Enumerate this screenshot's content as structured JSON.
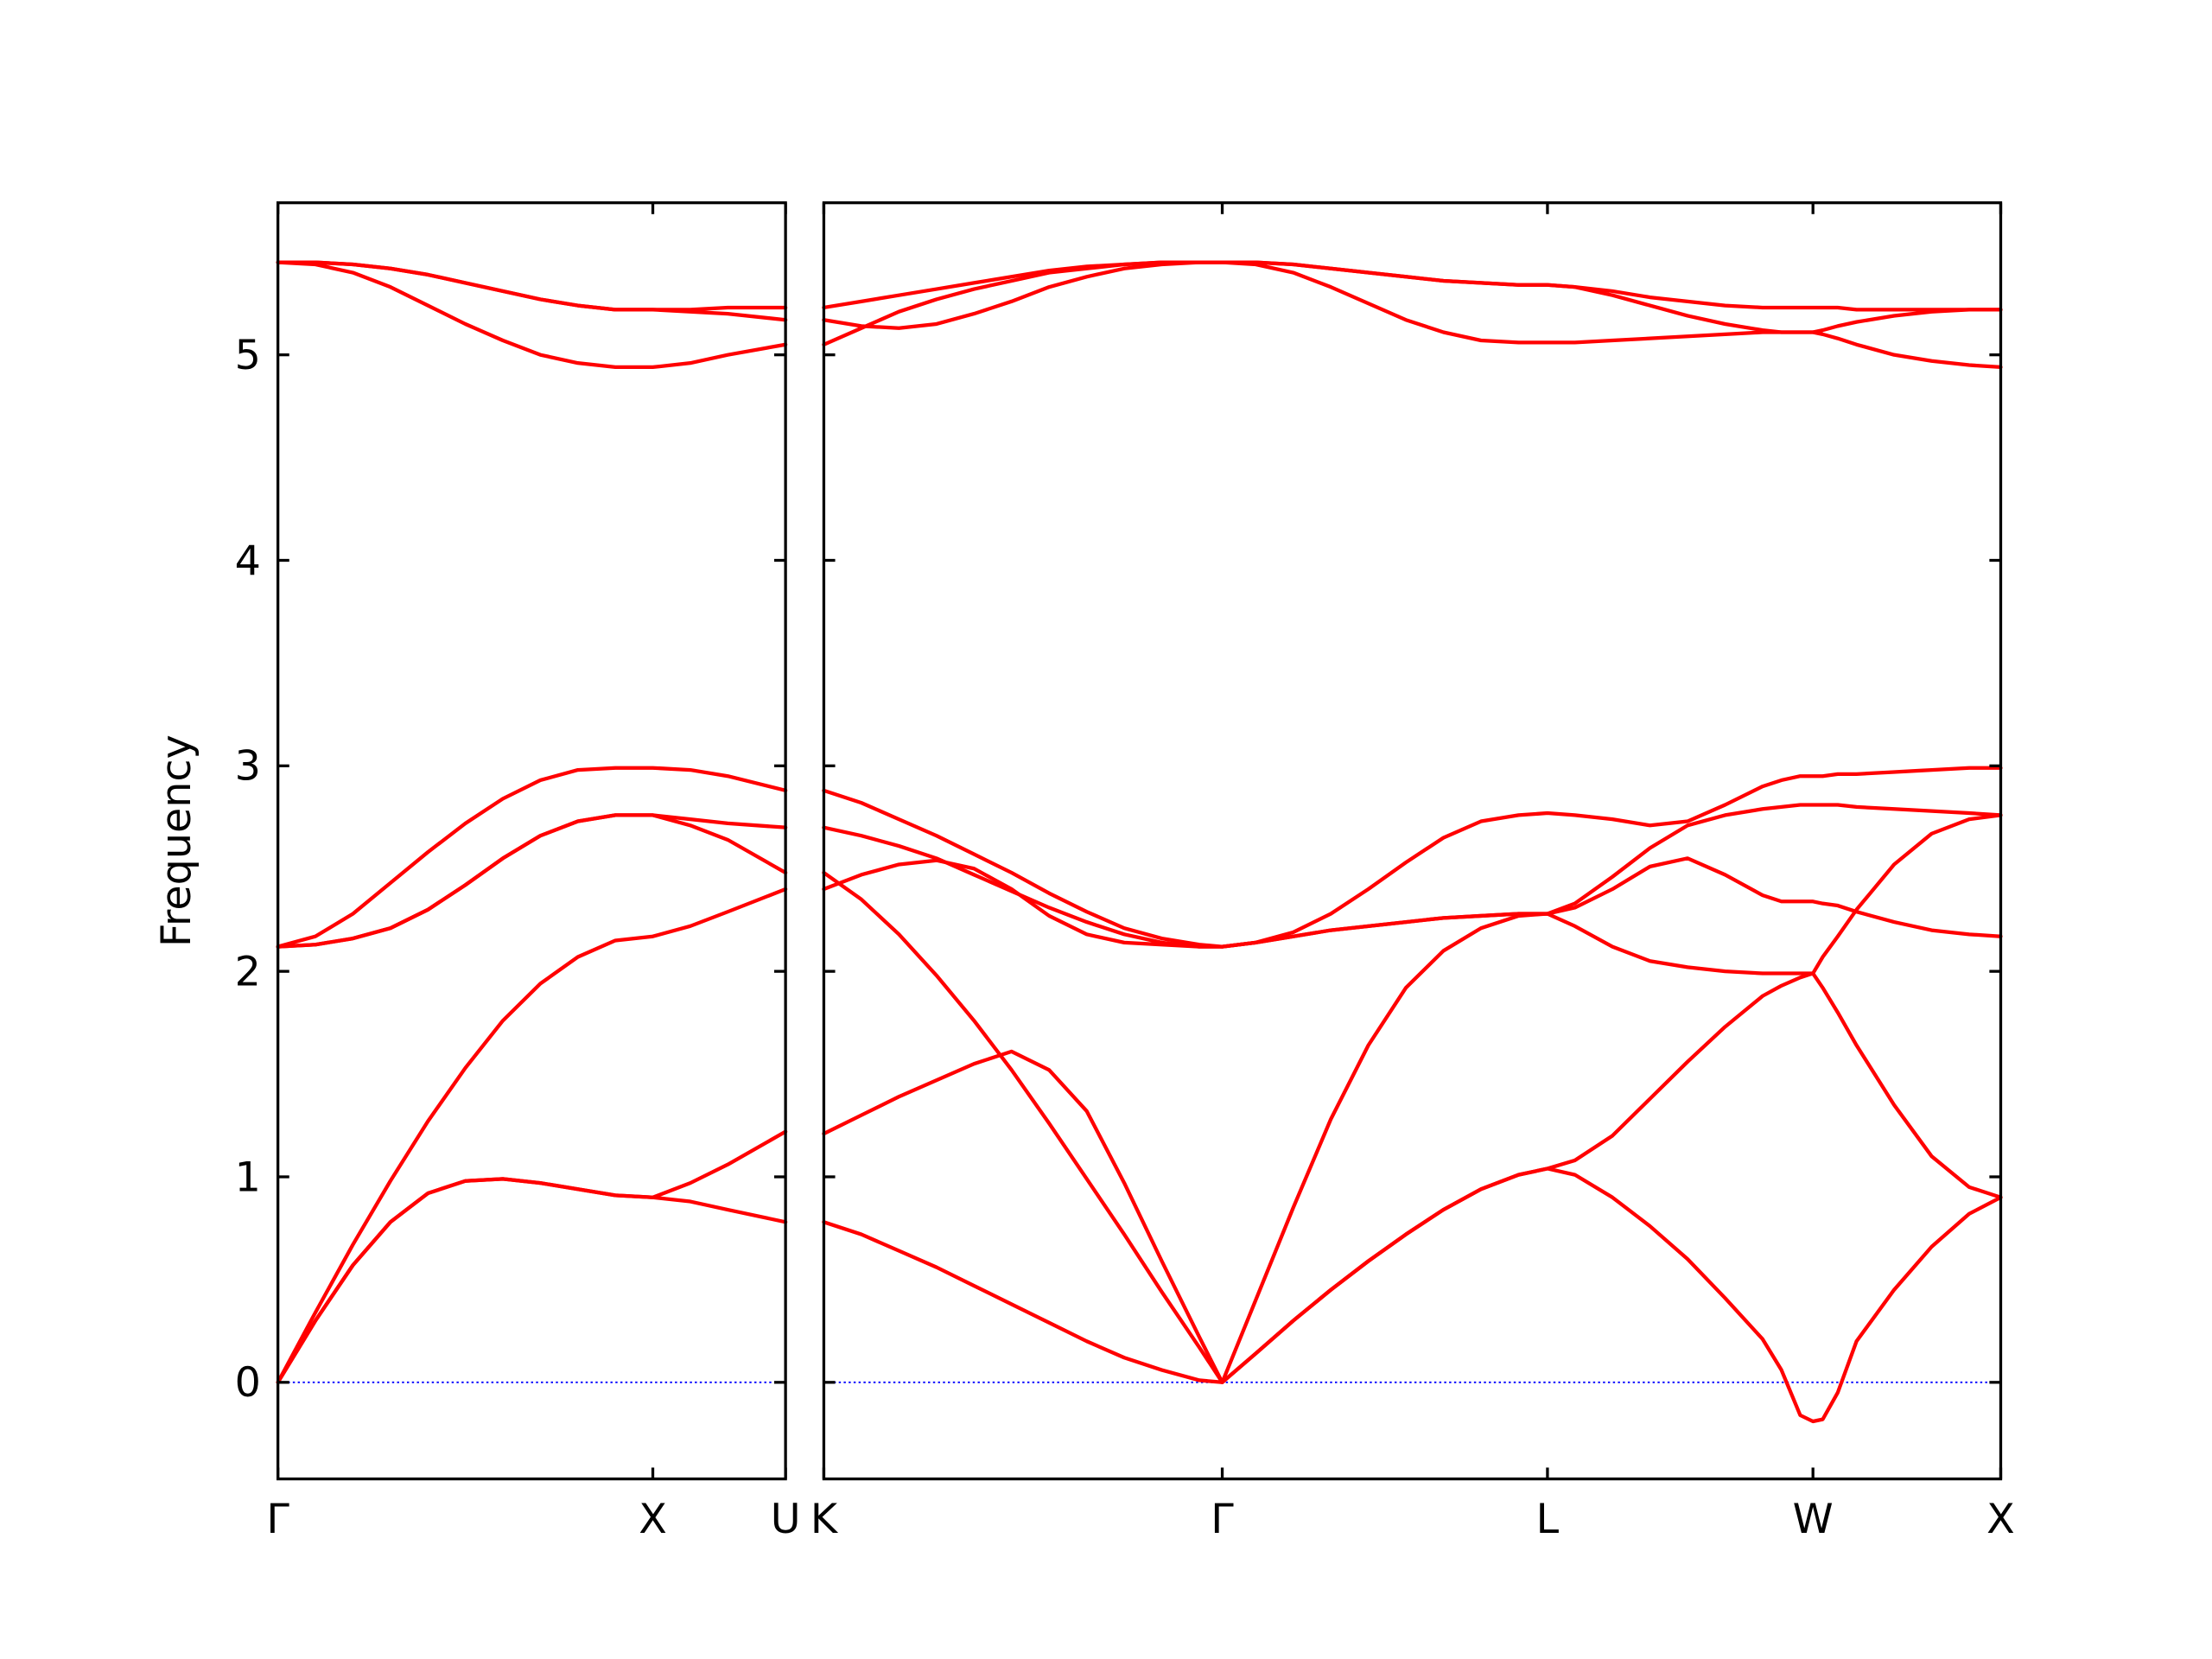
{
  "chart_data": [
    {
      "type": "line",
      "ylabel": "Frequency",
      "x": [
        0,
        0.1,
        0.2,
        0.3,
        0.4,
        0.5,
        0.6,
        0.7,
        0.8,
        0.9,
        1.0,
        1.1,
        1.2,
        1.354
      ],
      "xlim": [
        0,
        1.354
      ],
      "xticks": [
        {
          "value": 0,
          "label": "Γ"
        },
        {
          "value": 1,
          "label": "X"
        },
        {
          "value": 1.354,
          "label": "U"
        }
      ],
      "ylim": [
        -0.47,
        5.74
      ],
      "yticks": [
        0,
        1,
        2,
        3,
        4,
        5
      ],
      "ytick_labels": true,
      "hline": {
        "value": 0,
        "color": "#0000ff",
        "linestyle": "dotted"
      },
      "series": [
        {
          "color": "#ff0000",
          "values": [
            0,
            0.3,
            0.57,
            0.78,
            0.92,
            0.98,
            0.99,
            0.97,
            0.94,
            0.91,
            0.9,
            0.88,
            0.84,
            0.78
          ]
        },
        {
          "color": "#ff0000",
          "values": [
            0,
            0.3,
            0.57,
            0.78,
            0.92,
            0.98,
            0.99,
            0.97,
            0.94,
            0.91,
            0.9,
            0.97,
            1.06,
            1.22
          ]
        },
        {
          "color": "#ff0000",
          "values": [
            0,
            0.34,
            0.67,
            0.98,
            1.27,
            1.53,
            1.76,
            1.94,
            2.07,
            2.15,
            2.17,
            2.22,
            2.29,
            2.4
          ]
        },
        {
          "color": "#ff0000",
          "values": [
            2.12,
            2.13,
            2.16,
            2.21,
            2.3,
            2.42,
            2.55,
            2.66,
            2.73,
            2.76,
            2.76,
            2.74,
            2.72,
            2.7
          ]
        },
        {
          "color": "#ff0000",
          "values": [
            2.12,
            2.13,
            2.16,
            2.21,
            2.3,
            2.42,
            2.55,
            2.66,
            2.73,
            2.76,
            2.76,
            2.71,
            2.64,
            2.48
          ]
        },
        {
          "color": "#ff0000",
          "values": [
            2.12,
            2.17,
            2.28,
            2.43,
            2.58,
            2.72,
            2.84,
            2.93,
            2.98,
            2.99,
            2.99,
            2.98,
            2.95,
            2.88
          ]
        },
        {
          "color": "#ff0000",
          "values": [
            5.45,
            5.44,
            5.4,
            5.33,
            5.24,
            5.15,
            5.07,
            5.0,
            4.96,
            4.94,
            4.94,
            4.96,
            5.0,
            5.05
          ]
        },
        {
          "color": "#ff0000",
          "values": [
            5.45,
            5.45,
            5.44,
            5.42,
            5.39,
            5.35,
            5.31,
            5.27,
            5.24,
            5.22,
            5.22,
            5.21,
            5.2,
            5.17
          ]
        },
        {
          "color": "#ff0000",
          "values": [
            5.45,
            5.45,
            5.44,
            5.42,
            5.39,
            5.35,
            5.31,
            5.27,
            5.24,
            5.22,
            5.22,
            5.22,
            5.23,
            5.23
          ]
        }
      ]
    },
    {
      "type": "line",
      "x": [
        0,
        0.1,
        0.2,
        0.3,
        0.4,
        0.5,
        0.6,
        0.7,
        0.8,
        0.9,
        1.0,
        1.061,
        1.15,
        1.25,
        1.35,
        1.45,
        1.55,
        1.65,
        1.75,
        1.85,
        1.927,
        2.0,
        2.1,
        2.2,
        2.3,
        2.4,
        2.5,
        2.55,
        2.6,
        2.634,
        2.66,
        2.7,
        2.75,
        2.85,
        2.95,
        3.05,
        3.134
      ],
      "xlim": [
        0,
        3.134
      ],
      "xticks": [
        {
          "value": 0,
          "label": "K"
        },
        {
          "value": 1.061,
          "label": "Γ"
        },
        {
          "value": 1.927,
          "label": "L"
        },
        {
          "value": 2.634,
          "label": "W"
        },
        {
          "value": 3.134,
          "label": "X"
        }
      ],
      "ylim": [
        -0.47,
        5.74
      ],
      "yticks": [
        0,
        1,
        2,
        3,
        4,
        5
      ],
      "ytick_labels": false,
      "hline": {
        "value": 0,
        "color": "#0000ff",
        "linestyle": "dotted"
      },
      "series": [
        {
          "color": "#ff0000",
          "values": [
            0.78,
            0.72,
            0.64,
            0.56,
            0.47,
            0.38,
            0.29,
            0.2,
            0.12,
            0.06,
            0.01,
            0,
            0.14,
            0.3,
            0.45,
            0.59,
            0.72,
            0.84,
            0.94,
            1.01,
            1.04,
            1.01,
            0.9,
            0.76,
            0.6,
            0.41,
            0.21,
            0.06,
            -0.16,
            -0.19,
            -0.18,
            -0.05,
            0.2,
            0.45,
            0.66,
            0.82,
            0.9
          ]
        },
        {
          "color": "#ff0000",
          "values": [
            1.21,
            1.3,
            1.39,
            1.47,
            1.55,
            1.61,
            1.52,
            1.32,
            0.97,
            0.59,
            0.22,
            0,
            0.14,
            0.3,
            0.45,
            0.59,
            0.72,
            0.84,
            0.94,
            1.01,
            1.04,
            1.08,
            1.2,
            1.38,
            1.56,
            1.73,
            1.88,
            1.93,
            1.97,
            1.99,
            1.92,
            1.8,
            1.64,
            1.35,
            1.1,
            0.95,
            0.9
          ]
        },
        {
          "color": "#ff0000",
          "values": [
            2.48,
            2.35,
            2.18,
            1.98,
            1.76,
            1.52,
            1.26,
            0.99,
            0.72,
            0.44,
            0.17,
            0,
            0.4,
            0.85,
            1.28,
            1.64,
            1.92,
            2.1,
            2.21,
            2.27,
            2.28,
            2.22,
            2.12,
            2.05,
            2.02,
            2.0,
            1.99,
            1.99,
            1.99,
            1.99,
            2.07,
            2.17,
            2.3,
            2.52,
            2.67,
            2.74,
            2.76
          ]
        },
        {
          "color": "#ff0000",
          "values": [
            2.4,
            2.47,
            2.52,
            2.54,
            2.5,
            2.4,
            2.27,
            2.18,
            2.14,
            2.13,
            2.12,
            2.12,
            2.14,
            2.17,
            2.2,
            2.22,
            2.24,
            2.26,
            2.27,
            2.28,
            2.28,
            2.31,
            2.4,
            2.51,
            2.55,
            2.47,
            2.37,
            2.34,
            2.34,
            2.34,
            2.33,
            2.32,
            2.29,
            2.24,
            2.2,
            2.18,
            2.17
          ]
        },
        {
          "color": "#ff0000",
          "values": [
            2.7,
            2.66,
            2.61,
            2.55,
            2.47,
            2.39,
            2.31,
            2.24,
            2.18,
            2.14,
            2.12,
            2.12,
            2.14,
            2.17,
            2.2,
            2.22,
            2.24,
            2.26,
            2.27,
            2.28,
            2.28,
            2.33,
            2.46,
            2.6,
            2.71,
            2.76,
            2.79,
            2.8,
            2.81,
            2.81,
            2.81,
            2.81,
            2.8,
            2.79,
            2.78,
            2.77,
            2.76
          ]
        },
        {
          "color": "#ff0000",
          "values": [
            2.88,
            2.82,
            2.74,
            2.66,
            2.57,
            2.48,
            2.38,
            2.29,
            2.21,
            2.16,
            2.13,
            2.12,
            2.14,
            2.19,
            2.28,
            2.4,
            2.53,
            2.65,
            2.73,
            2.76,
            2.77,
            2.76,
            2.74,
            2.71,
            2.73,
            2.81,
            2.9,
            2.93,
            2.95,
            2.95,
            2.95,
            2.96,
            2.96,
            2.97,
            2.98,
            2.99,
            2.99
          ]
        },
        {
          "color": "#ff0000",
          "values": [
            5.17,
            5.14,
            5.13,
            5.15,
            5.2,
            5.26,
            5.33,
            5.38,
            5.42,
            5.44,
            5.45,
            5.45,
            5.44,
            5.4,
            5.33,
            5.25,
            5.17,
            5.11,
            5.07,
            5.06,
            5.06,
            5.06,
            5.07,
            5.08,
            5.09,
            5.1,
            5.11,
            5.11,
            5.11,
            5.11,
            5.12,
            5.14,
            5.16,
            5.19,
            5.21,
            5.22,
            5.22
          ]
        },
        {
          "color": "#ff0000",
          "values": [
            5.05,
            5.13,
            5.21,
            5.27,
            5.32,
            5.36,
            5.4,
            5.42,
            5.44,
            5.45,
            5.45,
            5.45,
            5.45,
            5.44,
            5.42,
            5.4,
            5.38,
            5.36,
            5.35,
            5.34,
            5.34,
            5.33,
            5.29,
            5.24,
            5.19,
            5.15,
            5.12,
            5.11,
            5.11,
            5.11,
            5.1,
            5.08,
            5.05,
            5.0,
            4.97,
            4.95,
            4.94
          ]
        },
        {
          "color": "#ff0000",
          "values": [
            5.23,
            5.26,
            5.29,
            5.32,
            5.35,
            5.38,
            5.41,
            5.43,
            5.44,
            5.45,
            5.45,
            5.45,
            5.45,
            5.44,
            5.42,
            5.4,
            5.38,
            5.36,
            5.35,
            5.34,
            5.34,
            5.33,
            5.31,
            5.28,
            5.26,
            5.24,
            5.23,
            5.23,
            5.23,
            5.23,
            5.23,
            5.23,
            5.22,
            5.22,
            5.22,
            5.22,
            5.22
          ]
        }
      ]
    }
  ]
}
